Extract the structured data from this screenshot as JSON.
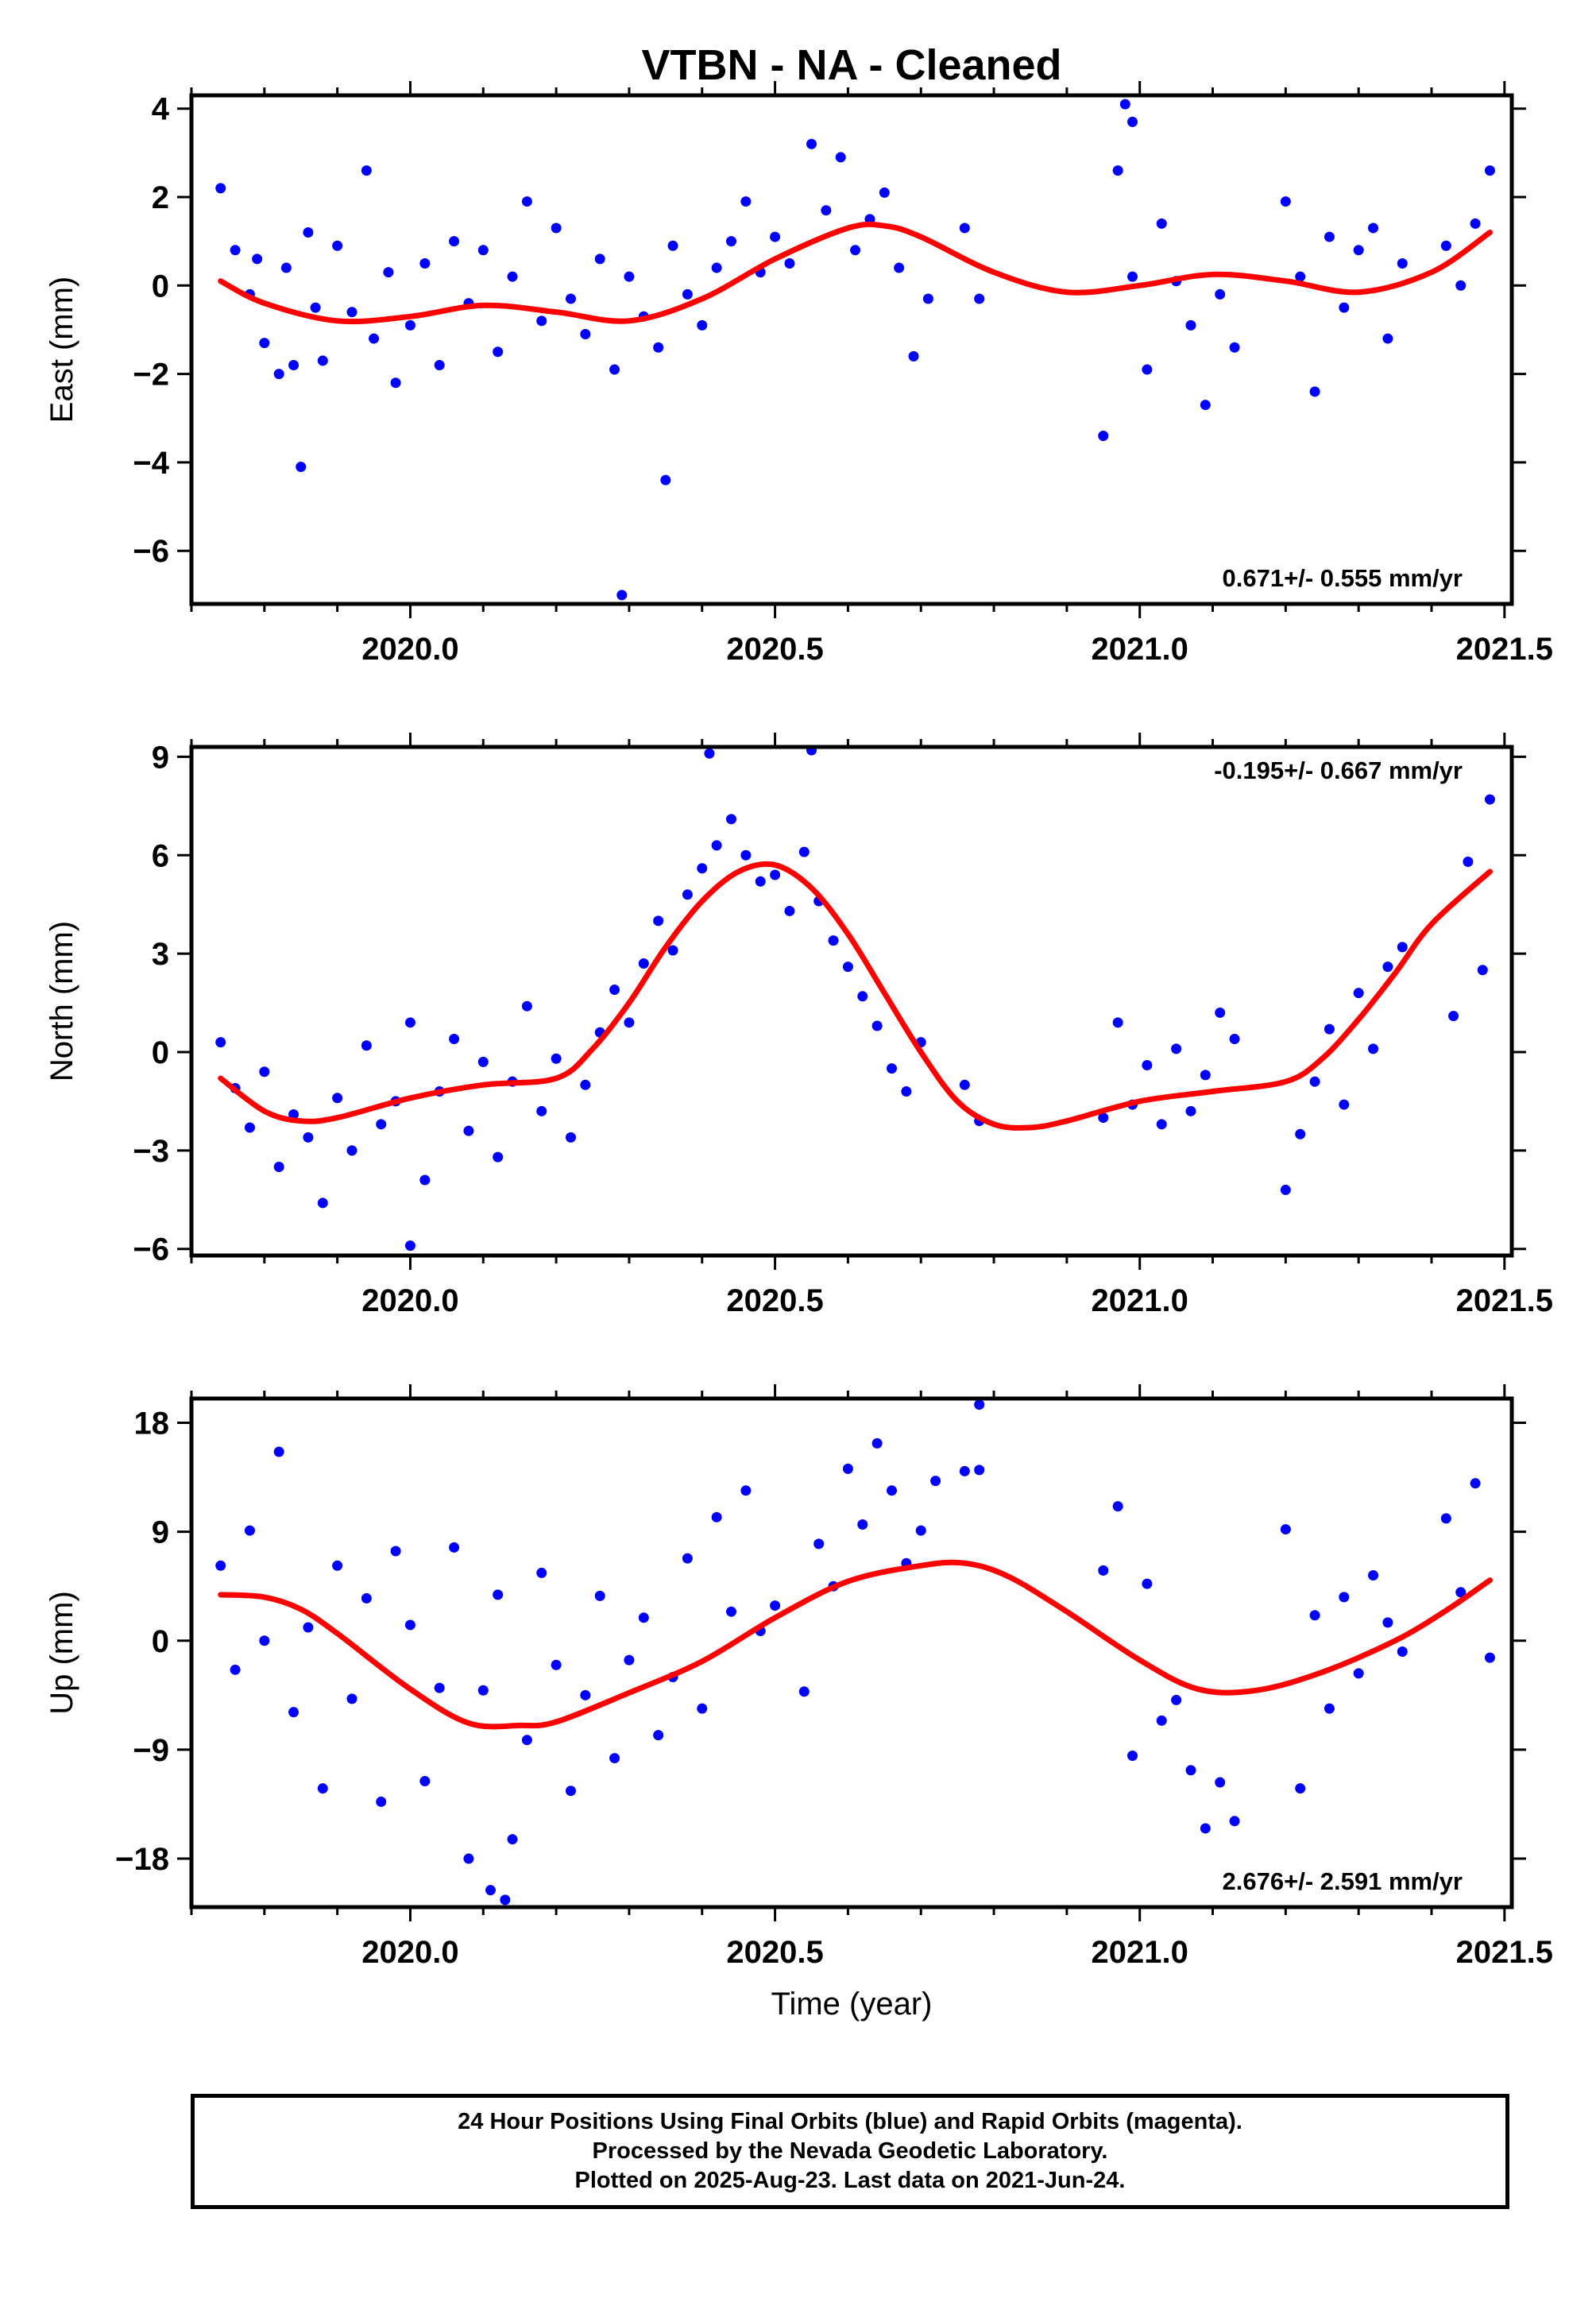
{
  "chart_data": [
    {
      "type": "scatter",
      "title": "VTBN  - NA - Cleaned",
      "ylabel": "East (mm)",
      "xlim": [
        2019.7,
        2021.51
      ],
      "ylim": [
        -7.2,
        4.3
      ],
      "yticks": [
        4,
        2,
        0,
        -2,
        -4,
        -6
      ],
      "ytick_labels": [
        "4",
        "2",
        "0",
        "−2",
        "−4",
        "−6"
      ],
      "xticks": [
        2020.0,
        2020.5,
        2021.0,
        2021.5
      ],
      "xtick_labels": [
        "2020.0",
        "2020.5",
        "2021.0",
        "2021.5"
      ],
      "rate_label": "0.671+/- 0.555 mm/yr",
      "rate_label_position": "bottom-right",
      "model_curve": {
        "color": "#ff0000",
        "x": [
          2019.74,
          2019.8,
          2019.9,
          2020.0,
          2020.1,
          2020.2,
          2020.3,
          2020.4,
          2020.5,
          2020.6,
          2020.65,
          2020.7,
          2020.8,
          2020.9,
          2021.0,
          2021.1,
          2021.2,
          2021.3,
          2021.4,
          2021.48
        ],
        "y": [
          0.1,
          -0.4,
          -0.8,
          -0.7,
          -0.45,
          -0.6,
          -0.8,
          -0.3,
          0.6,
          1.3,
          1.35,
          1.1,
          0.3,
          -0.15,
          0.0,
          0.25,
          0.1,
          -0.15,
          0.3,
          1.2
        ]
      },
      "points": {
        "color": "#0000ff",
        "x": [
          2019.74,
          2019.76,
          2019.78,
          2019.79,
          2019.8,
          2019.82,
          2019.83,
          2019.84,
          2019.86,
          2019.87,
          2019.88,
          2019.9,
          2019.92,
          2019.94,
          2019.95,
          2019.97,
          2019.98,
          2020.0,
          2020.02,
          2020.04,
          2020.06,
          2020.08,
          2020.1,
          2020.12,
          2020.14,
          2020.16,
          2020.18,
          2020.2,
          2020.22,
          2020.24,
          2020.26,
          2020.28,
          2020.3,
          2020.32,
          2020.34,
          2020.36,
          2020.38,
          2020.4,
          2020.42,
          2020.44,
          2020.46,
          2020.48,
          2020.5,
          2020.52,
          2020.55,
          2020.57,
          2020.59,
          2020.61,
          2020.63,
          2020.65,
          2020.67,
          2020.69,
          2020.71,
          2020.76,
          2020.78,
          2020.95,
          2020.97,
          2020.99,
          2021.01,
          2021.03,
          2021.05,
          2021.07,
          2021.09,
          2021.11,
          2021.13,
          2021.2,
          2021.22,
          2021.24,
          2021.26,
          2021.28,
          2021.3,
          2021.32,
          2021.34,
          2021.36,
          2021.42,
          2021.44,
          2021.46,
          2021.48,
          2019.85,
          2020.29,
          2020.35,
          2020.98,
          2020.99
        ],
        "y": [
          2.2,
          0.8,
          -0.2,
          0.6,
          -1.3,
          -2.0,
          0.4,
          -1.8,
          1.2,
          -0.5,
          -1.7,
          0.9,
          -0.6,
          2.6,
          -1.2,
          0.3,
          -2.2,
          -0.9,
          0.5,
          -1.8,
          1.0,
          -0.4,
          0.8,
          -1.5,
          0.2,
          1.9,
          -0.8,
          1.3,
          -0.3,
          -1.1,
          0.6,
          -1.9,
          0.2,
          -0.7,
          -1.4,
          0.9,
          -0.2,
          -0.9,
          0.4,
          1.0,
          1.9,
          0.3,
          1.1,
          0.5,
          3.2,
          1.7,
          2.9,
          0.8,
          1.5,
          2.1,
          0.4,
          -1.6,
          -0.3,
          1.3,
          -0.3,
          -3.4,
          2.6,
          0.2,
          -1.9,
          1.4,
          0.1,
          -0.9,
          -2.7,
          -0.2,
          -1.4,
          1.9,
          0.2,
          -2.4,
          1.1,
          -0.5,
          0.8,
          1.3,
          -1.2,
          0.5,
          0.9,
          0.0,
          1.4,
          2.6,
          -4.1,
          -7.0,
          -4.4,
          4.1,
          3.7
        ]
      }
    },
    {
      "type": "scatter",
      "ylabel": "North (mm)",
      "xlim": [
        2019.7,
        2021.51
      ],
      "ylim": [
        -6.2,
        9.3
      ],
      "yticks": [
        9,
        6,
        3,
        0,
        -3,
        -6
      ],
      "ytick_labels": [
        "9",
        "6",
        "3",
        "0",
        "−3",
        "−6"
      ],
      "xticks": [
        2020.0,
        2020.5,
        2021.0,
        2021.5
      ],
      "xtick_labels": [
        "2020.0",
        "2020.5",
        "2021.0",
        "2021.5"
      ],
      "rate_label": "-0.195+/- 0.667 mm/yr",
      "rate_label_position": "top-right",
      "model_curve": {
        "color": "#ff0000",
        "x": [
          2019.74,
          2019.8,
          2019.85,
          2019.9,
          2020.0,
          2020.1,
          2020.2,
          2020.25,
          2020.3,
          2020.35,
          2020.4,
          2020.45,
          2020.5,
          2020.55,
          2020.6,
          2020.65,
          2020.7,
          2020.75,
          2020.8,
          2020.85,
          2020.9,
          2021.0,
          2021.1,
          2021.2,
          2021.25,
          2021.3,
          2021.35,
          2021.4,
          2021.48
        ],
        "y": [
          -0.8,
          -1.8,
          -2.1,
          -2.0,
          -1.4,
          -1.0,
          -0.8,
          0.1,
          1.5,
          3.2,
          4.6,
          5.5,
          5.7,
          5.0,
          3.6,
          1.8,
          0.0,
          -1.5,
          -2.2,
          -2.3,
          -2.1,
          -1.5,
          -1.2,
          -0.9,
          -0.2,
          1.0,
          2.4,
          3.9,
          5.5
        ]
      },
      "points": {
        "color": "#0000ff",
        "x": [
          2019.74,
          2019.76,
          2019.78,
          2019.8,
          2019.82,
          2019.84,
          2019.86,
          2019.88,
          2019.9,
          2019.92,
          2019.94,
          2019.96,
          2019.98,
          2020.0,
          2020.02,
          2020.04,
          2020.06,
          2020.08,
          2020.1,
          2020.12,
          2020.14,
          2020.16,
          2020.18,
          2020.2,
          2020.22,
          2020.24,
          2020.26,
          2020.28,
          2020.3,
          2020.32,
          2020.34,
          2020.36,
          2020.38,
          2020.4,
          2020.42,
          2020.44,
          2020.46,
          2020.48,
          2020.5,
          2020.52,
          2020.54,
          2020.56,
          2020.58,
          2020.6,
          2020.62,
          2020.64,
          2020.66,
          2020.68,
          2020.7,
          2020.76,
          2020.78,
          2020.95,
          2020.97,
          2020.99,
          2021.01,
          2021.03,
          2021.05,
          2021.07,
          2021.09,
          2021.11,
          2021.13,
          2021.2,
          2021.22,
          2021.24,
          2021.26,
          2021.28,
          2021.3,
          2021.32,
          2021.34,
          2021.36,
          2021.43,
          2021.45,
          2021.47,
          2021.48,
          2020.41,
          2020.55,
          2020.0
        ],
        "y": [
          0.3,
          -1.1,
          -2.3,
          -0.6,
          -3.5,
          -1.9,
          -2.6,
          -4.6,
          -1.4,
          -3.0,
          0.2,
          -2.2,
          -1.5,
          0.9,
          -3.9,
          -1.2,
          0.4,
          -2.4,
          -0.3,
          -3.2,
          -0.9,
          1.4,
          -1.8,
          -0.2,
          -2.6,
          -1.0,
          0.6,
          1.9,
          0.9,
          2.7,
          4.0,
          3.1,
          4.8,
          5.6,
          6.3,
          7.1,
          6.0,
          5.2,
          5.4,
          4.3,
          6.1,
          4.6,
          3.4,
          2.6,
          1.7,
          0.8,
          -0.5,
          -1.2,
          0.3,
          -1.0,
          -2.1,
          -2.0,
          0.9,
          -1.6,
          -0.4,
          -2.2,
          0.1,
          -1.8,
          -0.7,
          1.2,
          0.4,
          -4.2,
          -2.5,
          -0.9,
          0.7,
          -1.6,
          1.8,
          0.1,
          2.6,
          3.2,
          1.1,
          5.8,
          2.5,
          7.7,
          9.1,
          9.2,
          -5.9
        ]
      }
    },
    {
      "type": "scatter",
      "xlabel": "Time (year)",
      "ylabel": "Up (mm)",
      "xlim": [
        2019.7,
        2021.51
      ],
      "ylim": [
        -22.0,
        20.0
      ],
      "yticks": [
        18,
        9,
        0,
        -9,
        -18
      ],
      "ytick_labels": [
        "18",
        "9",
        "0",
        "−9",
        "−18"
      ],
      "xticks": [
        2020.0,
        2020.5,
        2021.0,
        2021.5
      ],
      "xtick_labels": [
        "2020.0",
        "2020.5",
        "2021.0",
        "2021.5"
      ],
      "rate_label": "2.676+/- 2.591 mm/yr",
      "rate_label_position": "bottom-right",
      "model_curve": {
        "color": "#ff0000",
        "x": [
          2019.74,
          2019.8,
          2019.85,
          2019.9,
          2020.0,
          2020.08,
          2020.15,
          2020.2,
          2020.3,
          2020.4,
          2020.5,
          2020.6,
          2020.7,
          2020.76,
          2020.82,
          2020.9,
          2021.0,
          2021.08,
          2021.16,
          2021.25,
          2021.35,
          2021.42,
          2021.48
        ],
        "y": [
          3.8,
          3.6,
          2.6,
          0.6,
          -4.0,
          -6.8,
          -7.0,
          -6.7,
          -4.3,
          -1.7,
          1.9,
          4.9,
          6.2,
          6.4,
          5.3,
          2.4,
          -1.6,
          -4.0,
          -4.1,
          -2.6,
          0.0,
          2.5,
          5.0
        ]
      },
      "points": {
        "color": "#0000ff",
        "x": [
          2019.74,
          2019.76,
          2019.78,
          2019.8,
          2019.82,
          2019.84,
          2019.86,
          2019.88,
          2019.9,
          2019.92,
          2019.94,
          2019.96,
          2019.98,
          2020.0,
          2020.02,
          2020.04,
          2020.06,
          2020.08,
          2020.1,
          2020.12,
          2020.14,
          2020.16,
          2020.18,
          2020.2,
          2020.22,
          2020.24,
          2020.26,
          2020.28,
          2020.3,
          2020.32,
          2020.34,
          2020.36,
          2020.38,
          2020.4,
          2020.42,
          2020.44,
          2020.46,
          2020.48,
          2020.5,
          2020.54,
          2020.56,
          2020.58,
          2020.6,
          2020.62,
          2020.64,
          2020.66,
          2020.68,
          2020.7,
          2020.72,
          2020.76,
          2020.78,
          2020.95,
          2020.97,
          2020.99,
          2021.01,
          2021.03,
          2021.05,
          2021.07,
          2021.09,
          2021.11,
          2021.13,
          2021.2,
          2021.22,
          2021.24,
          2021.26,
          2021.28,
          2021.3,
          2021.32,
          2021.34,
          2021.36,
          2021.42,
          2021.44,
          2021.46,
          2021.48,
          2020.78,
          2020.13,
          2020.11
        ],
        "y": [
          6.2,
          -2.4,
          9.1,
          0.0,
          15.6,
          -5.9,
          1.1,
          -12.2,
          6.2,
          -4.8,
          3.5,
          -13.3,
          7.4,
          1.3,
          -11.6,
          -3.9,
          7.7,
          -18.0,
          -4.1,
          3.8,
          -16.4,
          -8.2,
          5.6,
          -2.0,
          -12.4,
          -4.5,
          3.7,
          -9.7,
          -1.6,
          1.9,
          -7.8,
          -3.0,
          6.8,
          -5.6,
          10.2,
          2.4,
          12.4,
          0.8,
          2.9,
          -4.2,
          8.0,
          4.5,
          14.2,
          9.6,
          16.3,
          12.4,
          6.4,
          9.1,
          13.2,
          14.0,
          19.5,
          5.8,
          11.1,
          -9.5,
          4.7,
          -6.6,
          -4.9,
          -10.7,
          -15.5,
          -11.7,
          -14.9,
          9.2,
          -12.2,
          2.1,
          -5.6,
          3.6,
          -2.7,
          5.4,
          1.5,
          -0.9,
          10.1,
          4.0,
          13.0,
          -1.4,
          14.1,
          -21.4,
          -20.6
        ]
      }
    }
  ],
  "footer": {
    "line1": "24 Hour Positions Using Final Orbits (blue) and Rapid Orbits (magenta).",
    "line2": "Processed by the Nevada Geodetic Laboratory.",
    "line3": "Plotted on 2025-Aug-23. Last data on 2021-Jun-24."
  }
}
